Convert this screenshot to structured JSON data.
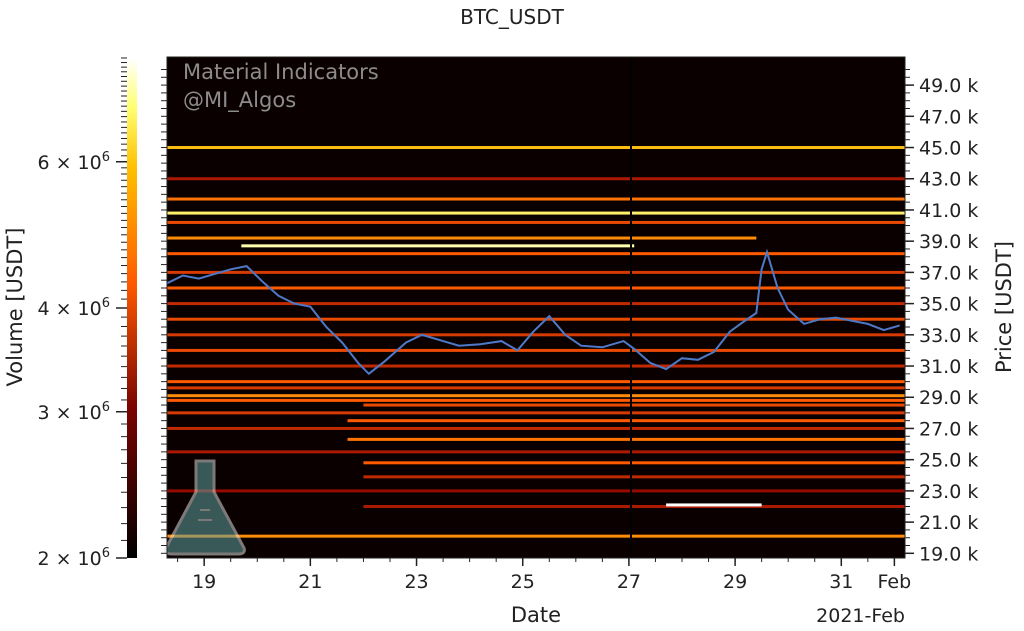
{
  "chart_data": {
    "type": "heatmap",
    "title": "BTC_USDT",
    "xlabel": "Date",
    "ylabel_right": "Price [USDT]",
    "colorbar_label": "Volume [USDT]",
    "x_offset_label": "2021-Feb",
    "x_ticks": [
      {
        "day": 19,
        "label": "19"
      },
      {
        "day": 21,
        "label": "21"
      },
      {
        "day": 23,
        "label": "23"
      },
      {
        "day": 25,
        "label": "25"
      },
      {
        "day": 27,
        "label": "27"
      },
      {
        "day": 29,
        "label": "29"
      },
      {
        "day": 31,
        "label": "31"
      },
      {
        "day": 32,
        "label": "Feb"
      }
    ],
    "x_range_day": [
      18.3,
      32.2
    ],
    "y_range_price": [
      18700,
      50800
    ],
    "price_ticks": [
      {
        "value": 19000,
        "label": "19.0 k"
      },
      {
        "value": 21000,
        "label": "21.0 k"
      },
      {
        "value": 23000,
        "label": "23.0 k"
      },
      {
        "value": 25000,
        "label": "25.0 k"
      },
      {
        "value": 27000,
        "label": "27.0 k"
      },
      {
        "value": 29000,
        "label": "29.0 k"
      },
      {
        "value": 31000,
        "label": "31.0 k"
      },
      {
        "value": 33000,
        "label": "33.0 k"
      },
      {
        "value": 35000,
        "label": "35.0 k"
      },
      {
        "value": 37000,
        "label": "37.0 k"
      },
      {
        "value": 39000,
        "label": "39.0 k"
      },
      {
        "value": 41000,
        "label": "41.0 k"
      },
      {
        "value": 43000,
        "label": "43.0 k"
      },
      {
        "value": 45000,
        "label": "45.0 k"
      },
      {
        "value": 47000,
        "label": "47.0 k"
      },
      {
        "value": 49000,
        "label": "49.0 k"
      }
    ],
    "colorbar": {
      "scale": "log",
      "range": [
        2000000,
        8000000
      ],
      "ticks": [
        {
          "value": 2000000,
          "base": "2",
          "exp": "6"
        },
        {
          "value": 3000000,
          "base": "3",
          "exp": "6"
        },
        {
          "value": 4000000,
          "base": "4",
          "exp": "6"
        },
        {
          "value": 6000000,
          "base": "6",
          "exp": "6"
        }
      ],
      "colormap": "afmhot"
    },
    "price_series": [
      [
        18.3,
        36300
      ],
      [
        18.6,
        36800
      ],
      [
        18.9,
        36600
      ],
      [
        19.2,
        36900
      ],
      [
        19.5,
        37200
      ],
      [
        19.8,
        37400
      ],
      [
        20.1,
        36400
      ],
      [
        20.4,
        35500
      ],
      [
        20.7,
        35000
      ],
      [
        21.0,
        34800
      ],
      [
        21.3,
        33500
      ],
      [
        21.6,
        32500
      ],
      [
        21.9,
        31200
      ],
      [
        22.1,
        30500
      ],
      [
        22.4,
        31300
      ],
      [
        22.8,
        32500
      ],
      [
        23.1,
        33000
      ],
      [
        23.5,
        32600
      ],
      [
        23.8,
        32300
      ],
      [
        24.2,
        32400
      ],
      [
        24.6,
        32600
      ],
      [
        24.9,
        32000
      ],
      [
        25.2,
        33200
      ],
      [
        25.5,
        34200
      ],
      [
        25.8,
        33000
      ],
      [
        26.1,
        32300
      ],
      [
        26.5,
        32200
      ],
      [
        26.9,
        32600
      ],
      [
        27.1,
        32100
      ],
      [
        27.4,
        31200
      ],
      [
        27.7,
        30800
      ],
      [
        28.0,
        31500
      ],
      [
        28.3,
        31400
      ],
      [
        28.6,
        31900
      ],
      [
        28.9,
        33200
      ],
      [
        29.1,
        33700
      ],
      [
        29.4,
        34400
      ],
      [
        29.5,
        37200
      ],
      [
        29.6,
        38300
      ],
      [
        29.8,
        36000
      ],
      [
        30.0,
        34600
      ],
      [
        30.3,
        33700
      ],
      [
        30.6,
        34000
      ],
      [
        30.9,
        34100
      ],
      [
        31.2,
        33900
      ],
      [
        31.5,
        33700
      ],
      [
        31.8,
        33300
      ],
      [
        32.1,
        33600
      ]
    ],
    "liquidity_bands": [
      {
        "price": 45000,
        "start": 18.3,
        "end": 32.2,
        "level": 0.8
      },
      {
        "price": 43000,
        "start": 18.3,
        "end": 32.2,
        "level": 0.4
      },
      {
        "price": 41700,
        "start": 18.3,
        "end": 32.2,
        "level": 0.65
      },
      {
        "price": 40800,
        "start": 18.3,
        "end": 32.2,
        "level": 0.9
      },
      {
        "price": 40200,
        "start": 18.3,
        "end": 32.2,
        "level": 0.55
      },
      {
        "price": 39200,
        "start": 18.3,
        "end": 29.4,
        "level": 0.7
      },
      {
        "price": 38700,
        "start": 19.7,
        "end": 27.1,
        "level": 0.95
      },
      {
        "price": 38200,
        "start": 18.3,
        "end": 32.2,
        "level": 0.6
      },
      {
        "price": 37000,
        "start": 18.3,
        "end": 32.2,
        "level": 0.5
      },
      {
        "price": 36000,
        "start": 18.3,
        "end": 32.2,
        "level": 0.6
      },
      {
        "price": 35000,
        "start": 18.3,
        "end": 32.2,
        "level": 0.45
      },
      {
        "price": 34000,
        "start": 18.3,
        "end": 32.2,
        "level": 0.55
      },
      {
        "price": 33000,
        "start": 18.3,
        "end": 32.2,
        "level": 0.5
      },
      {
        "price": 32000,
        "start": 18.3,
        "end": 32.2,
        "level": 0.55
      },
      {
        "price": 31000,
        "start": 18.3,
        "end": 32.2,
        "level": 0.45
      },
      {
        "price": 30000,
        "start": 18.3,
        "end": 32.2,
        "level": 0.6
      },
      {
        "price": 29600,
        "start": 18.3,
        "end": 32.2,
        "level": 0.5
      },
      {
        "price": 29100,
        "start": 18.3,
        "end": 32.2,
        "level": 0.7
      },
      {
        "price": 28800,
        "start": 18.3,
        "end": 32.2,
        "level": 0.6
      },
      {
        "price": 28500,
        "start": 22.0,
        "end": 32.2,
        "level": 0.55
      },
      {
        "price": 28000,
        "start": 18.3,
        "end": 32.2,
        "level": 0.5
      },
      {
        "price": 27500,
        "start": 21.7,
        "end": 32.2,
        "level": 0.6
      },
      {
        "price": 27000,
        "start": 18.3,
        "end": 32.2,
        "level": 0.45
      },
      {
        "price": 26300,
        "start": 21.7,
        "end": 32.2,
        "level": 0.65
      },
      {
        "price": 25500,
        "start": 18.3,
        "end": 32.2,
        "level": 0.4
      },
      {
        "price": 24800,
        "start": 22.0,
        "end": 32.2,
        "level": 0.6
      },
      {
        "price": 23900,
        "start": 22.0,
        "end": 32.2,
        "level": 0.45
      },
      {
        "price": 23000,
        "start": 18.3,
        "end": 32.2,
        "level": 0.35
      },
      {
        "price": 22000,
        "start": 22.0,
        "end": 32.2,
        "level": 0.4
      },
      {
        "price": 20100,
        "start": 18.3,
        "end": 32.2,
        "level": 0.7
      },
      {
        "price": 22100,
        "start": 27.7,
        "end": 29.5,
        "level": 1.0
      }
    ],
    "brand_watermark": [
      "Material Indicators",
      "@MI_Algos"
    ]
  }
}
